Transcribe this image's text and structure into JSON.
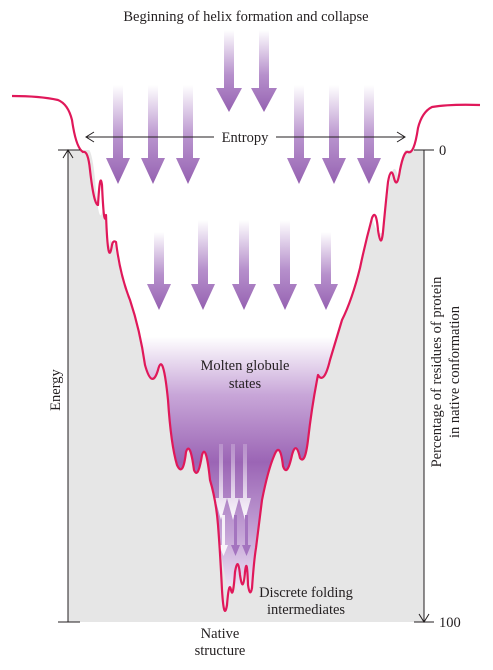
{
  "title": "Beginning of helix formation and collapse",
  "labels": {
    "entropy": "Entropy",
    "energy": "Energy",
    "right_axis_line1": "Percentage of residues of protein",
    "right_axis_line2": "in native conformation",
    "molten_line1": "Molten globule",
    "molten_line2": "states",
    "discrete_line1": "Discrete folding",
    "discrete_line2": "intermediates",
    "native_line1": "Native",
    "native_line2": "structure"
  },
  "right_axis_ticks": {
    "top": "0",
    "bottom": "100"
  },
  "colors": {
    "funnel_curve": "#e0185a",
    "funnel_background": "#e6e6e6",
    "purple_dark": "#9b65b5",
    "purple_light": "#efe4f5",
    "arrow_purple": "#a474bf",
    "axis": "#231f20"
  }
}
